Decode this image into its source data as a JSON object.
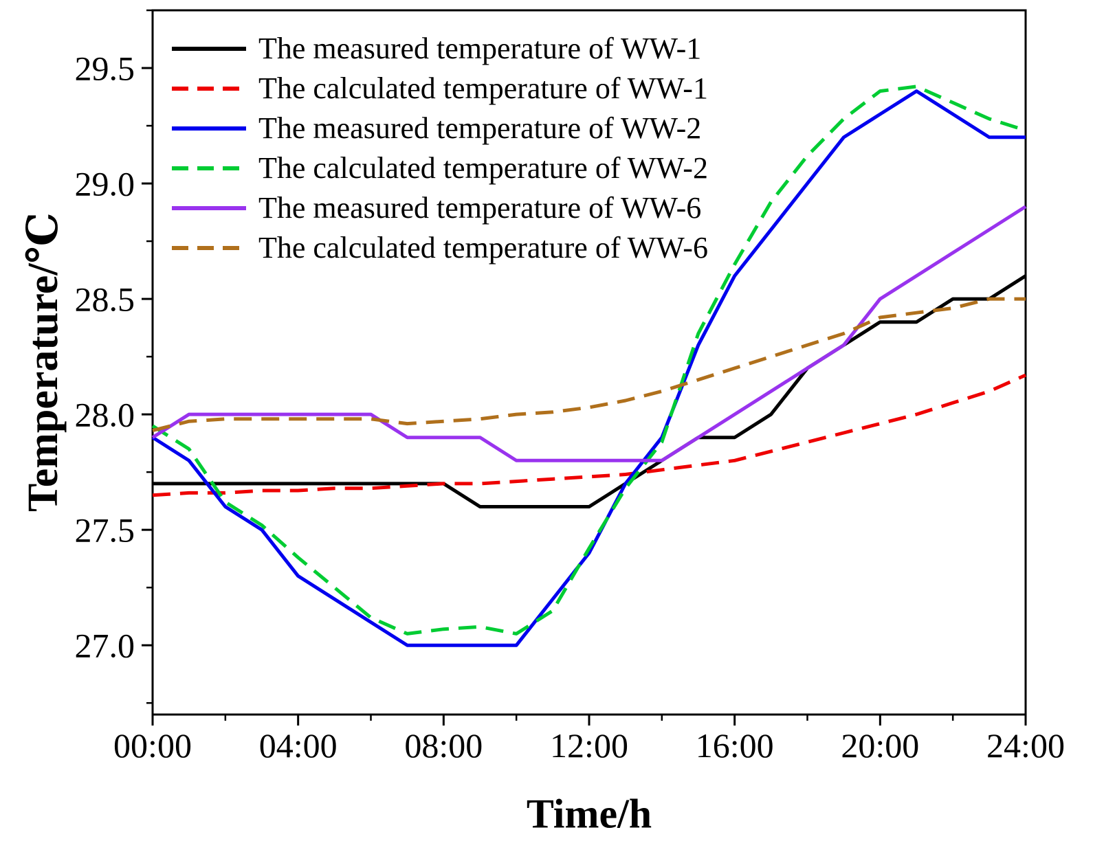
{
  "chart_data": {
    "type": "line",
    "title": "",
    "xlabel": "Time/h",
    "ylabel": "Temperature/℃",
    "grid": false,
    "legend_position": "top-left",
    "xlim": [
      0,
      24
    ],
    "ylim": [
      26.7,
      29.75
    ],
    "x": [
      0,
      1,
      2,
      3,
      4,
      5,
      6,
      7,
      8,
      9,
      10,
      11,
      12,
      13,
      14,
      15,
      16,
      17,
      18,
      19,
      20,
      21,
      22,
      23,
      24
    ],
    "x_ticks": [
      {
        "value": 0,
        "label": "00:00"
      },
      {
        "value": 4,
        "label": "04:00"
      },
      {
        "value": 8,
        "label": "08:00"
      },
      {
        "value": 12,
        "label": "12:00"
      },
      {
        "value": 16,
        "label": "16:00"
      },
      {
        "value": 20,
        "label": "20:00"
      },
      {
        "value": 24,
        "label": "24:00"
      }
    ],
    "y_ticks": [
      {
        "value": 27.0,
        "label": "27.0"
      },
      {
        "value": 27.5,
        "label": "27.5"
      },
      {
        "value": 28.0,
        "label": "28.0"
      },
      {
        "value": 28.5,
        "label": "28.5"
      },
      {
        "value": 29.0,
        "label": "29.0"
      },
      {
        "value": 29.5,
        "label": "29.5"
      }
    ],
    "x_minor_step": 2,
    "y_minor_step": 0.25,
    "series": [
      {
        "label": "The measured temperature of WW-1",
        "color": "#000000",
        "line_style": "solid",
        "values": [
          27.7,
          27.7,
          27.7,
          27.7,
          27.7,
          27.7,
          27.7,
          27.7,
          27.7,
          27.6,
          27.6,
          27.6,
          27.6,
          27.7,
          27.8,
          27.9,
          27.9,
          28.0,
          28.2,
          28.3,
          28.4,
          28.4,
          28.5,
          28.5,
          28.6
        ]
      },
      {
        "label": "The calculated temperature of WW-1",
        "color": "#ee0000",
        "line_style": "dashed",
        "values": [
          27.65,
          27.66,
          27.66,
          27.67,
          27.67,
          27.68,
          27.68,
          27.69,
          27.7,
          27.7,
          27.71,
          27.72,
          27.73,
          27.74,
          27.76,
          27.78,
          27.8,
          27.84,
          27.88,
          27.92,
          27.96,
          28.0,
          28.05,
          28.1,
          28.17
        ]
      },
      {
        "label": "The measured temperature of WW-2",
        "color": "#0000ee",
        "line_style": "solid",
        "values": [
          27.9,
          27.8,
          27.6,
          27.5,
          27.3,
          27.2,
          27.1,
          27.0,
          27.0,
          27.0,
          27.0,
          27.2,
          27.4,
          27.7,
          27.9,
          28.3,
          28.6,
          28.8,
          29.0,
          29.2,
          29.3,
          29.4,
          29.3,
          29.2,
          29.2
        ]
      },
      {
        "label": "The calculated temperature of WW-2",
        "color": "#00cc33",
        "line_style": "dashed",
        "values": [
          27.95,
          27.85,
          27.62,
          27.52,
          27.38,
          27.25,
          27.12,
          27.05,
          27.07,
          27.08,
          27.05,
          27.15,
          27.42,
          27.68,
          27.88,
          28.35,
          28.65,
          28.92,
          29.12,
          29.28,
          29.4,
          29.42,
          29.35,
          29.28,
          29.23
        ]
      },
      {
        "label": "The measured temperature of WW-6",
        "color": "#9933ee",
        "line_style": "solid",
        "values": [
          27.9,
          28.0,
          28.0,
          28.0,
          28.0,
          28.0,
          28.0,
          27.9,
          27.9,
          27.9,
          27.8,
          27.8,
          27.8,
          27.8,
          27.8,
          27.9,
          28.0,
          28.1,
          28.2,
          28.3,
          28.5,
          28.6,
          28.7,
          28.8,
          28.9
        ]
      },
      {
        "label": "The calculated temperature of WW-6",
        "color": "#b0701c",
        "line_style": "dashed",
        "values": [
          27.93,
          27.97,
          27.98,
          27.98,
          27.98,
          27.98,
          27.98,
          27.96,
          27.97,
          27.98,
          28.0,
          28.01,
          28.03,
          28.06,
          28.1,
          28.15,
          28.2,
          28.25,
          28.3,
          28.35,
          28.42,
          28.44,
          28.46,
          28.5,
          28.5
        ]
      }
    ]
  }
}
